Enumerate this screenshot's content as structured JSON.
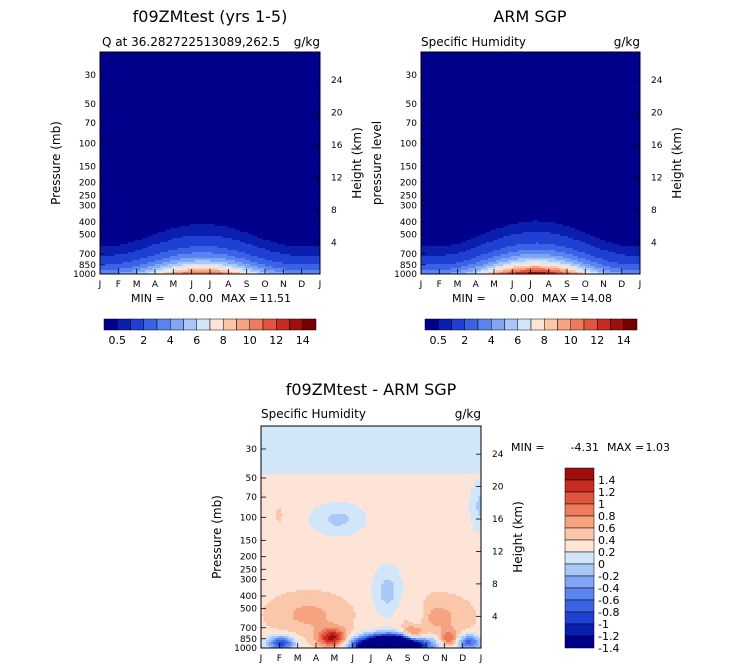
{
  "colors": {
    "seq": [
      "#00008b",
      "#0a1fb0",
      "#1f40d2",
      "#3a62e6",
      "#5a84f0",
      "#80a6f5",
      "#a9c7f8",
      "#d2e6fa",
      "#fde4d6",
      "#fbc7ab",
      "#f5a380",
      "#ee7c5b",
      "#e1543d",
      "#c92b22",
      "#9f0d0d",
      "#750000"
    ],
    "div": [
      "#00008b",
      "#0a1fb0",
      "#1f40d2",
      "#3a62e6",
      "#5a84f0",
      "#80a6f5",
      "#a9c7f8",
      "#d2e6fa",
      "#fde4d6",
      "#fbc7ab",
      "#f5a380",
      "#ee7c5b",
      "#e1543d",
      "#c92b22",
      "#9f0d0d"
    ]
  },
  "chart_data": [
    {
      "type": "heatmap",
      "title": "f09ZMtest (yrs 1-5)",
      "subtitle_left": "Q at 36.282722513089,262.5",
      "subtitle_right": "g/kg",
      "ylabel": "Pressure (mb)",
      "ylabel_right": "Height (km)",
      "x_ticks": [
        "J",
        "F",
        "M",
        "A",
        "M",
        "J",
        "J",
        "A",
        "S",
        "O",
        "N",
        "D",
        "J"
      ],
      "y_ticks": [
        "30",
        "50",
        "70",
        "100",
        "150",
        "200",
        "250",
        "300",
        "400",
        "500",
        "700",
        "850",
        "1000"
      ],
      "y_ticks_right": [
        "24",
        "20",
        "16",
        "12",
        "8",
        "4"
      ],
      "y_log_range": [
        20,
        1000
      ],
      "stats": {
        "min_label": "MIN =",
        "min": "0.00",
        "max_label": "MAX =",
        "max": "11.51"
      },
      "peak_month": 5.6,
      "peak_value": 11.51
    },
    {
      "type": "heatmap",
      "title": "ARM SGP",
      "subtitle_left": "Specific Humidity",
      "subtitle_right": "g/kg",
      "ylabel": "pressure level",
      "ylabel_right": "Height (km)",
      "x_ticks": [
        "J",
        "F",
        "M",
        "A",
        "M",
        "J",
        "J",
        "A",
        "S",
        "O",
        "N",
        "D",
        "J"
      ],
      "y_ticks": [
        "30",
        "50",
        "70",
        "100",
        "150",
        "200",
        "250",
        "300",
        "400",
        "500",
        "700",
        "850",
        "1000"
      ],
      "y_ticks_right": [
        "24",
        "20",
        "16",
        "12",
        "8",
        "4"
      ],
      "y_log_range": [
        20,
        1000
      ],
      "stats": {
        "min_label": "MIN =",
        "min": "0.00",
        "max_label": "MAX =",
        "max": "14.08"
      },
      "peak_month": 6.3,
      "peak_value": 14.08
    },
    {
      "type": "heatmap",
      "title": "f09ZMtest - ARM SGP",
      "subtitle_left": "Specific Humidity",
      "subtitle_right": "g/kg",
      "ylabel": "Pressure (mb)",
      "ylabel_right": "Height (km)",
      "x_ticks": [
        "J",
        "F",
        "M",
        "A",
        "M",
        "J",
        "J",
        "A",
        "S",
        "O",
        "N",
        "D",
        "J"
      ],
      "y_ticks": [
        "30",
        "50",
        "70",
        "100",
        "150",
        "200",
        "250",
        "300",
        "400",
        "500",
        "700",
        "850",
        "1000"
      ],
      "y_ticks_right": [
        "24",
        "20",
        "16",
        "12",
        "8",
        "4"
      ],
      "y_log_range": [
        20,
        1000
      ],
      "stats": {
        "min_label": "MIN =",
        "min": "-4.31",
        "max_label": "MAX =",
        "max": "1.03"
      }
    }
  ],
  "colorbars": [
    {
      "orientation": "horizontal",
      "labels": [
        "0.5",
        "2",
        "4",
        "6",
        "8",
        "10",
        "12",
        "14"
      ]
    },
    {
      "orientation": "horizontal",
      "labels": [
        "0.5",
        "2",
        "4",
        "6",
        "8",
        "10",
        "12",
        "14"
      ]
    },
    {
      "orientation": "vertical",
      "labels": [
        "1.4",
        "1.2",
        "1",
        "0.8",
        "0.6",
        "0.4",
        "0.2",
        "0",
        "-0.2",
        "-0.4",
        "-0.6",
        "-0.8",
        "-1",
        "-1.2",
        "-1.4"
      ]
    }
  ]
}
